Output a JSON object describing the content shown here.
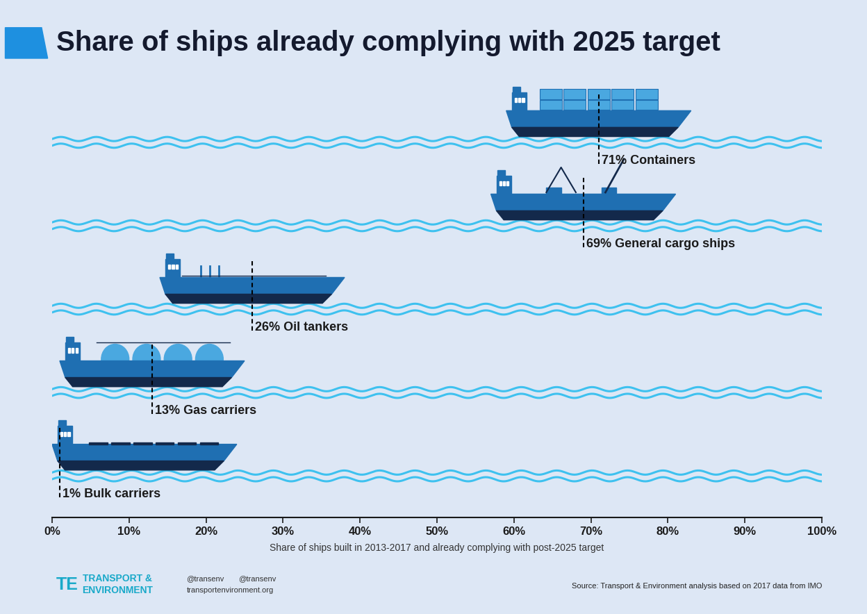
{
  "chart_data": {
    "type": "dot",
    "orientation": "horizontal",
    "title": "Share of ships already complying with 2025 target",
    "xlabel": "Share of ships built in 2013-2017 and already complying with post-2025 target",
    "categories": [
      null,
      null,
      null,
      null,
      null
    ],
    "values": [
      71,
      69,
      26,
      13,
      1
    ],
    "value_labels": [
      "71% Containers",
      "69% General cargo ships",
      "26% Oil tankers",
      "13% Gas carriers",
      "1% Bulk carriers"
    ],
    "xlim": [
      0,
      100
    ],
    "xticks": [
      {
        "value": 0,
        "label": "0%"
      },
      {
        "value": 10,
        "label": "10%"
      },
      {
        "value": 20,
        "label": "20%"
      },
      {
        "value": 30,
        "label": "30%"
      },
      {
        "value": 40,
        "label": "40%"
      },
      {
        "value": 50,
        "label": "50%"
      },
      {
        "value": 60,
        "label": "60%"
      },
      {
        "value": 70,
        "label": "70%"
      },
      {
        "value": 80,
        "label": "80%"
      },
      {
        "value": 90,
        "label": "90%"
      },
      {
        "value": 100,
        "label": "100%"
      }
    ],
    "data_labels": true,
    "tick_labels": "x",
    "line_style": "dashed",
    "color": "#1f6fb2",
    "grid": false,
    "source": "Source: Transport & Environment analysis based on 2017 data from IMO",
    "logo": [
      "TRANSPORT &",
      "ENVIRONMENT"
    ],
    "social": [
      "@transenv",
      "@transenv",
      "transportenvironment.org"
    ]
  }
}
